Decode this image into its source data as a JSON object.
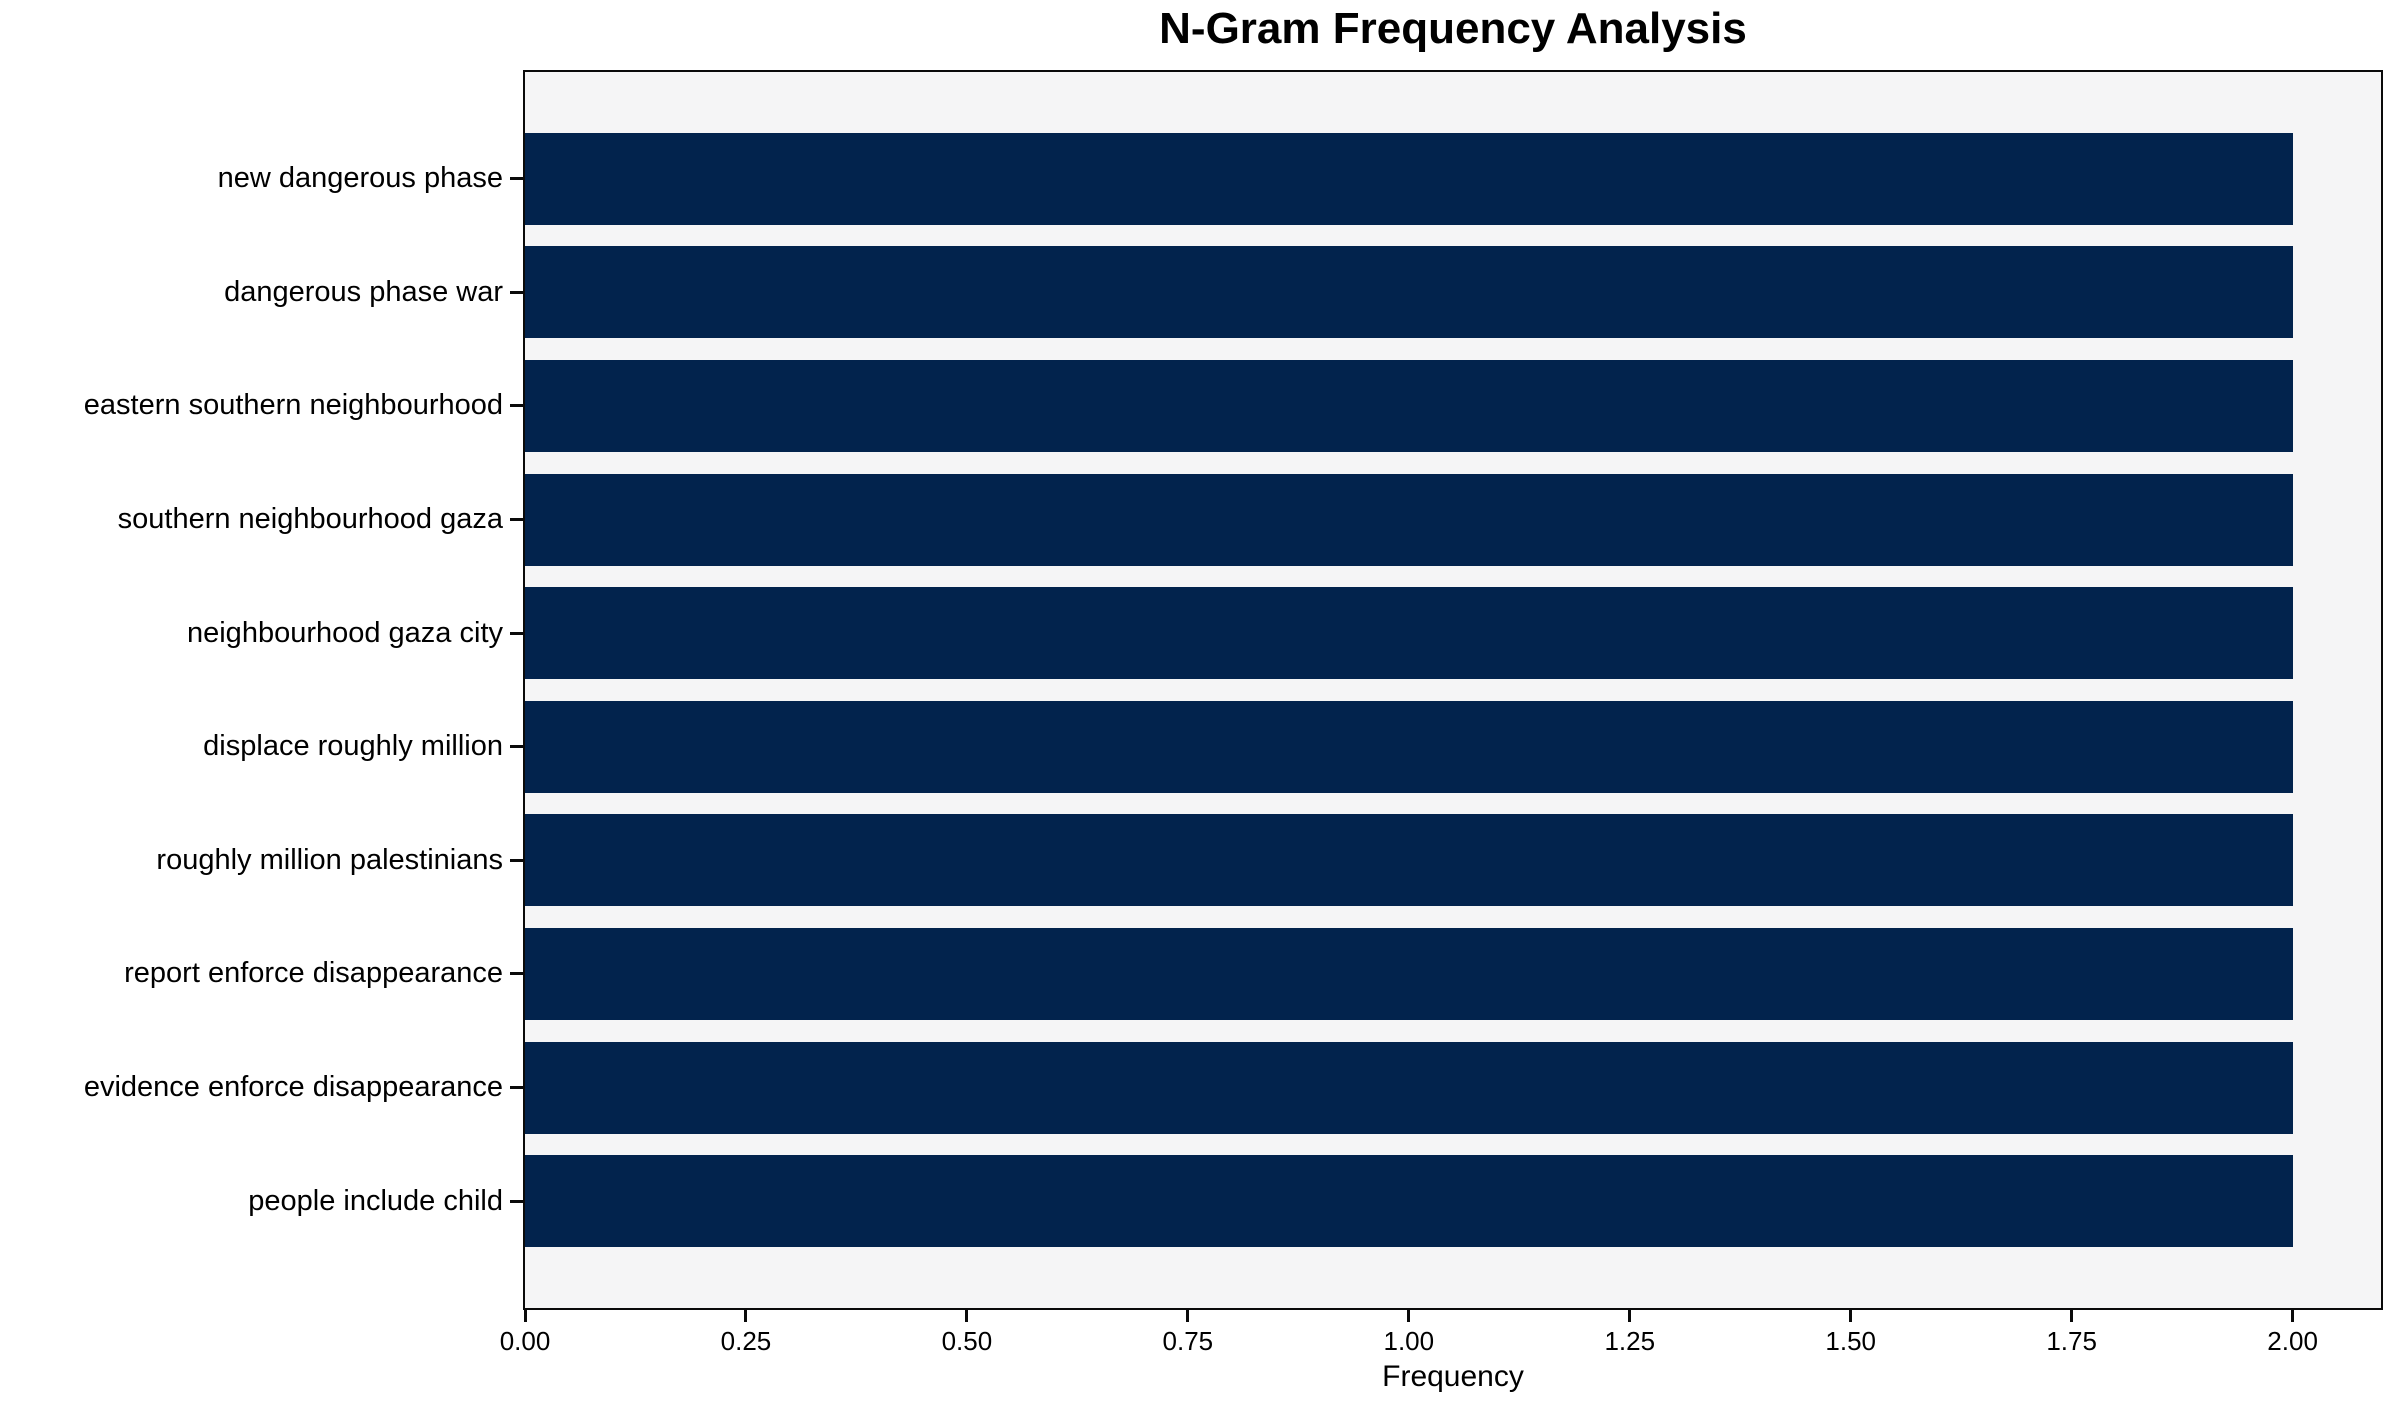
{
  "chart_data": {
    "type": "bar",
    "orientation": "horizontal",
    "title": "N-Gram Frequency Analysis",
    "xlabel": "Frequency",
    "ylabel": "",
    "categories": [
      "new dangerous phase",
      "dangerous phase war",
      "eastern southern neighbourhood",
      "southern neighbourhood gaza",
      "neighbourhood gaza city",
      "displace roughly million",
      "roughly million palestinians",
      "report enforce disappearance",
      "evidence enforce disappearance",
      "people include child"
    ],
    "values": [
      2,
      2,
      2,
      2,
      2,
      2,
      2,
      2,
      2,
      2
    ],
    "xlim": [
      0,
      2.1
    ],
    "xtick_values": [
      0,
      0.25,
      0.5,
      0.75,
      1.0,
      1.25,
      1.5,
      1.75,
      2.0
    ],
    "xticks": [
      "0.00",
      "0.25",
      "0.50",
      "0.75",
      "1.00",
      "1.25",
      "1.50",
      "1.75",
      "2.00"
    ],
    "grid": false,
    "legend_position": "none",
    "bar_color": "#02234d",
    "plot_background": "#f5f5f6",
    "figure_background": "#ffffff",
    "spine_color": "#0a0a0a"
  }
}
